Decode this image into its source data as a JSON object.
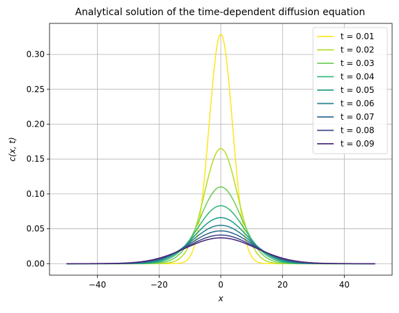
{
  "chart_data": {
    "type": "line",
    "title": "Analytical solution of the time-dependent diffusion equation",
    "xlabel": "x",
    "ylabel": "c(x, t)",
    "xlim": [
      -55.5,
      55.5
    ],
    "ylim": [
      -0.0165,
      0.3445
    ],
    "xticks": [
      -40,
      -20,
      0,
      20,
      40
    ],
    "xtick_labels": [
      "−40",
      "−20",
      "0",
      "20",
      "40"
    ],
    "yticks": [
      0.0,
      0.05,
      0.1,
      0.15,
      0.2,
      0.25,
      0.3
    ],
    "ytick_labels": [
      "0.00",
      "0.05",
      "0.10",
      "0.15",
      "0.20",
      "0.25",
      "0.30"
    ],
    "grid": true,
    "legend_position": "top-right",
    "x_domain": [
      -50,
      50
    ],
    "series": [
      {
        "name": "t = 0.01",
        "color": "#fde725",
        "peak": 0.329,
        "sigma": 3.79
      },
      {
        "name": "t = 0.02",
        "color": "#b5de2b",
        "peak": 0.165,
        "sigma": 5.36
      },
      {
        "name": "t = 0.03",
        "color": "#6ece58",
        "peak": 0.11,
        "sigma": 6.57
      },
      {
        "name": "t = 0.04",
        "color": "#35b779",
        "peak": 0.083,
        "sigma": 7.58
      },
      {
        "name": "t = 0.05",
        "color": "#1f9e89",
        "peak": 0.066,
        "sigma": 8.48
      },
      {
        "name": "t = 0.06",
        "color": "#26828e",
        "peak": 0.055,
        "sigma": 9.29
      },
      {
        "name": "t = 0.07",
        "color": "#31688e",
        "peak": 0.047,
        "sigma": 10.03
      },
      {
        "name": "t = 0.08",
        "color": "#3e4989",
        "peak": 0.041,
        "sigma": 10.72
      },
      {
        "name": "t = 0.09",
        "color": "#482878",
        "peak": 0.037,
        "sigma": 11.37
      }
    ]
  }
}
